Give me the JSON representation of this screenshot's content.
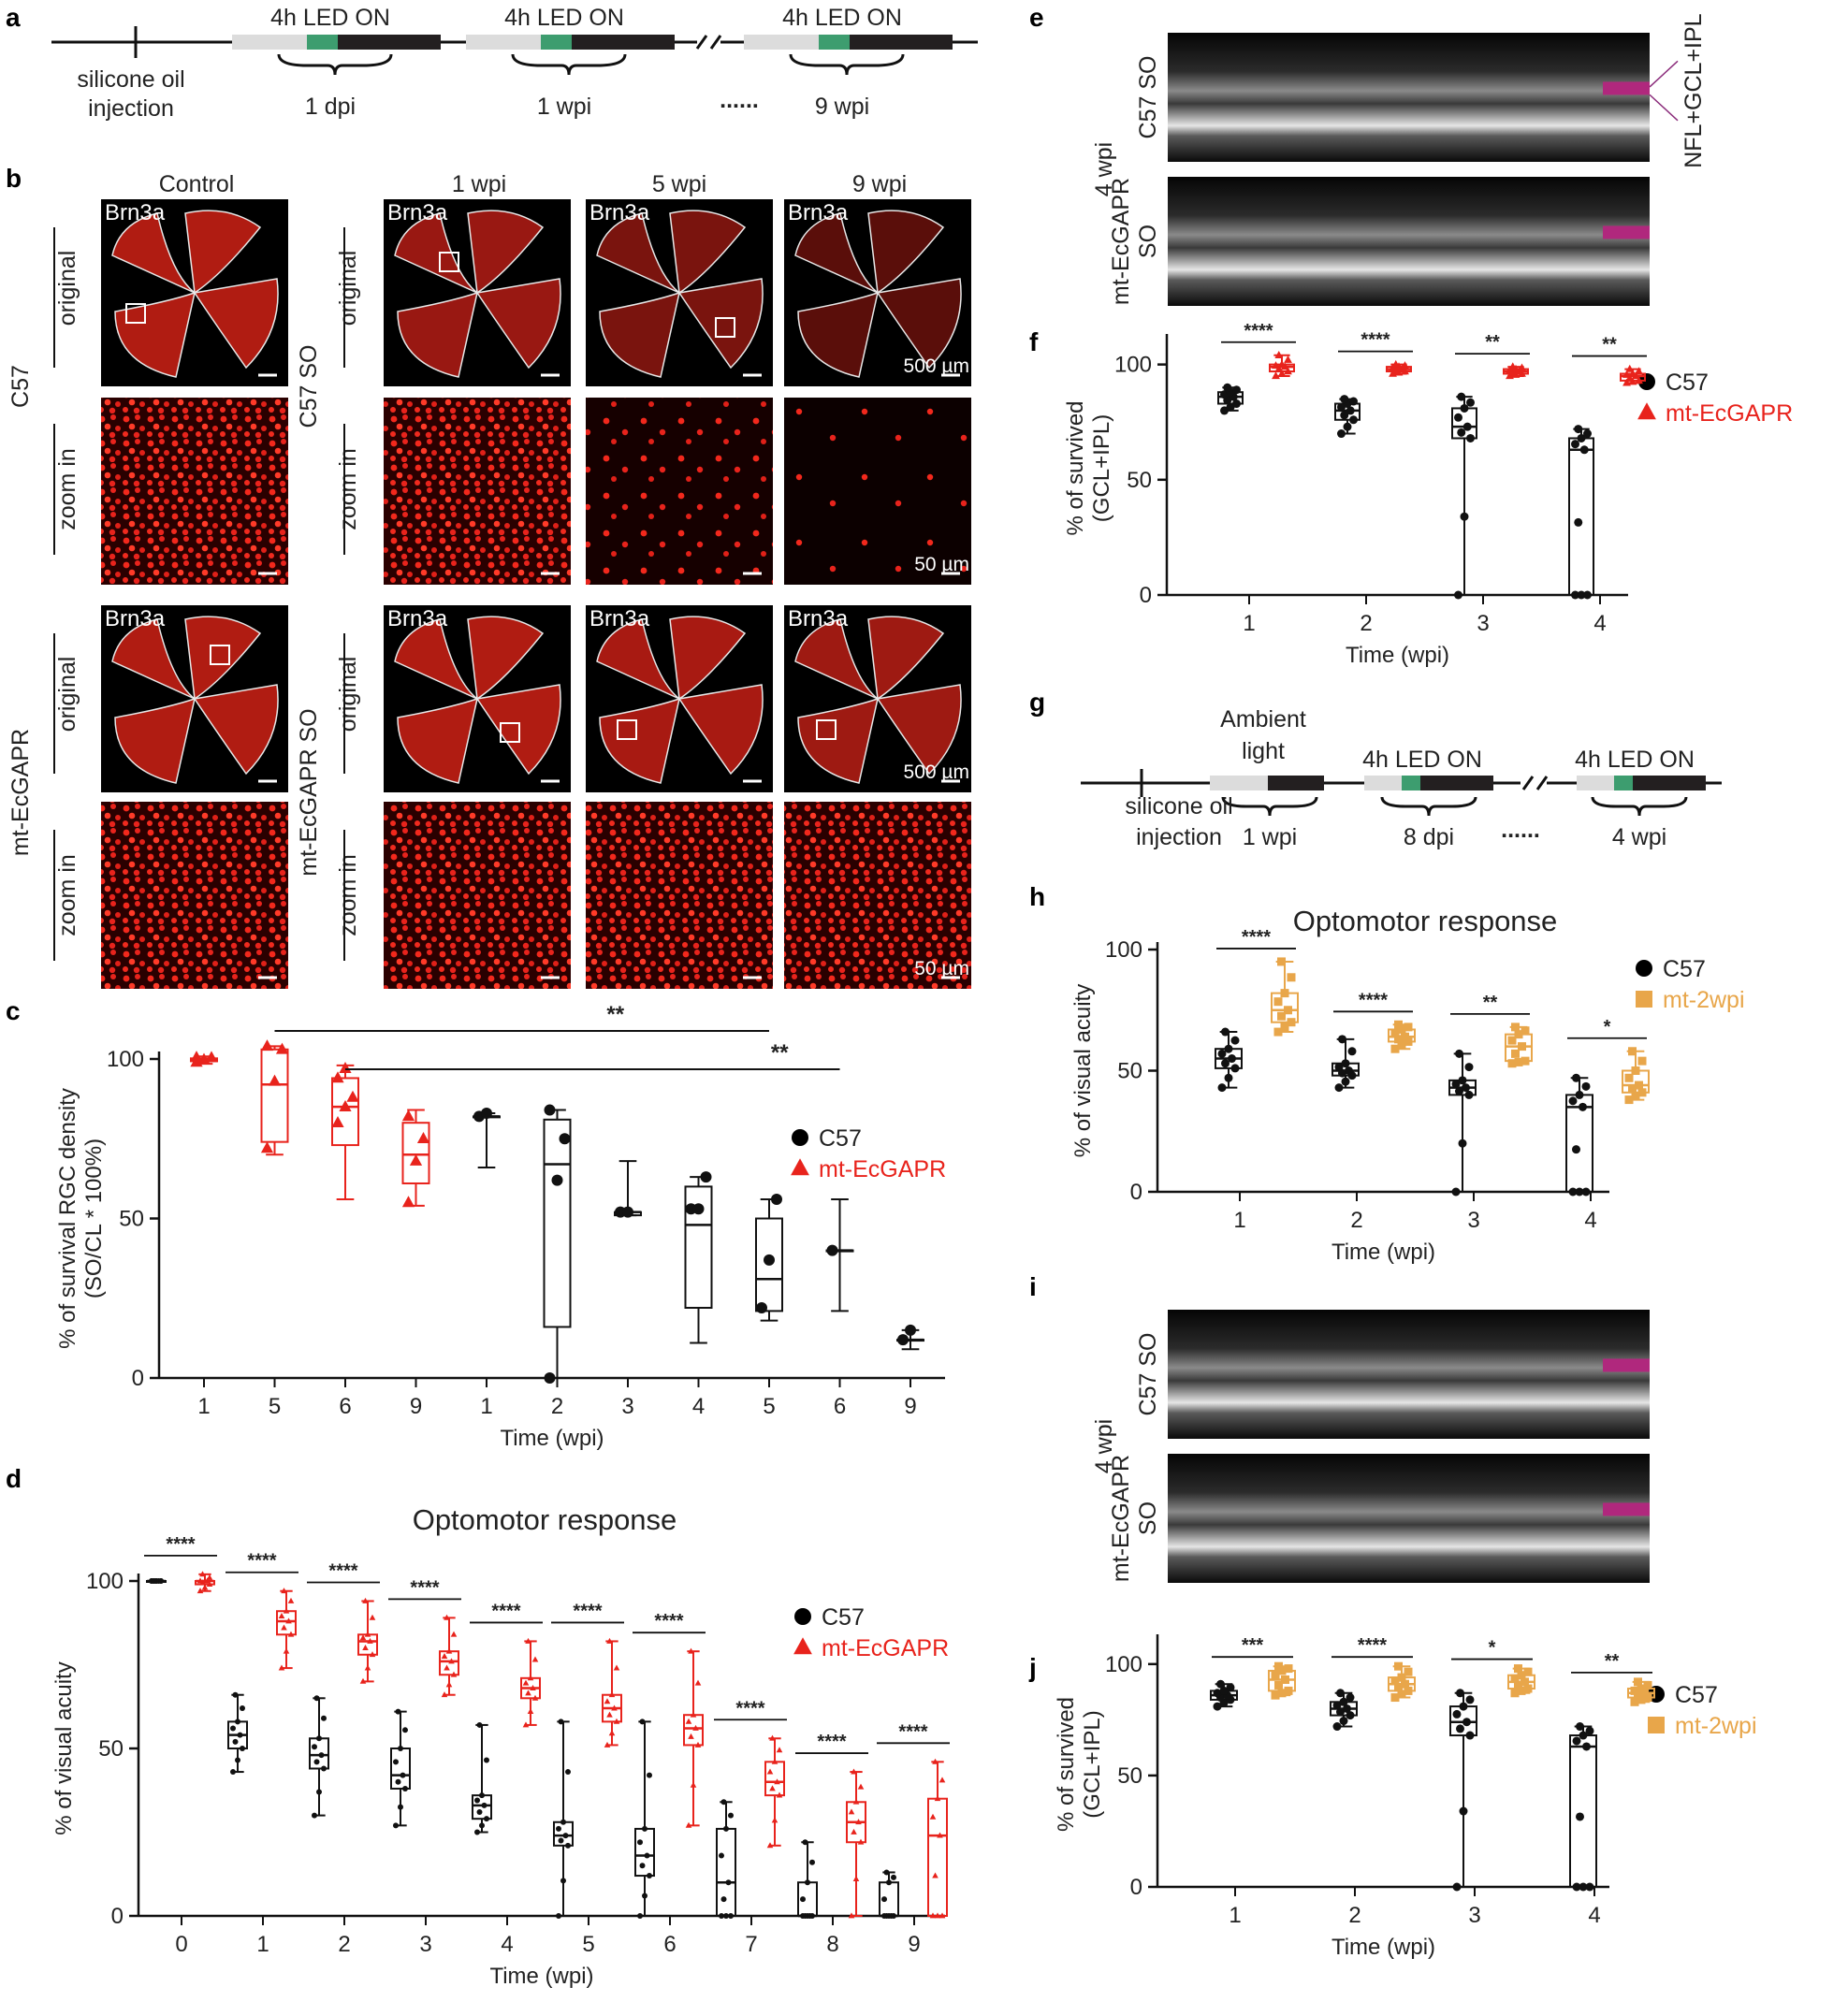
{
  "panels": {
    "a": {
      "letter": "a",
      "injection": "silicone oil\ninjection",
      "led": "4h LED ON",
      "times": [
        "1 dpi",
        "1 wpi",
        "9 wpi"
      ],
      "dots": "......"
    },
    "b": {
      "letter": "b",
      "columns": [
        "Control",
        "1 wpi",
        "5 wpi",
        "9 wpi"
      ],
      "marker": "Brn3a",
      "rows": [
        "C57",
        "mt-EcGAPR"
      ],
      "groups": [
        "C57 SO",
        "mt-EcGAPR SO"
      ],
      "sublabels": [
        "original",
        "zoom in"
      ],
      "scale_large": "500 µm",
      "scale_small": "50 µm"
    },
    "e": {
      "letter": "e",
      "side": "4 wpi",
      "rows": [
        "C57 SO",
        "mt-EcGAPR\nSO"
      ],
      "annot": "NFL+GCL+IPL"
    },
    "g": {
      "letter": "g",
      "injection": "silicone oil\ninjection",
      "ambient": "Ambient\nlight",
      "led": "4h LED ON",
      "times": [
        "1 wpi",
        "8 dpi",
        "4 wpi"
      ],
      "dots": "......"
    },
    "i": {
      "letter": "i",
      "side": "4 wpi",
      "rows": [
        "C57 SO",
        "mt-EcGAPR\nSO"
      ]
    }
  },
  "chart_data": [
    {
      "id": "c",
      "letter": "c",
      "type": "box",
      "ylabel": "% of survival RGC density\n(SO/CL * 100%)",
      "xlabel": "Time (wpi)",
      "ylim": [
        0,
        100
      ],
      "yticks": [
        0,
        50,
        100
      ],
      "categories": [
        "1",
        "5",
        "6",
        "9",
        "1",
        "2",
        "3",
        "4",
        "5",
        "6",
        "9"
      ],
      "legend": [
        {
          "name": "C57",
          "color": "#000000",
          "marker": "circle"
        },
        {
          "name": "mt-EcGAPR",
          "color": "#e8231c",
          "marker": "triangle"
        }
      ],
      "boxes": [
        {
          "series": 1,
          "min": 98.5,
          "q1": 99.3,
          "median": 99.8,
          "q3": 100.2,
          "max": 100.8,
          "points": [
            99.0,
            99.8,
            100.4,
            100.5
          ]
        },
        {
          "series": 1,
          "min": 70,
          "q1": 74,
          "median": 92,
          "q3": 103,
          "max": 104,
          "points": [
            72,
            93,
            103,
            104
          ]
        },
        {
          "series": 1,
          "min": 56,
          "q1": 73,
          "median": 85,
          "q3": 94,
          "max": 98,
          "points": [
            80,
            85,
            88,
            94,
            97
          ]
        },
        {
          "series": 1,
          "min": 54,
          "q1": 61,
          "median": 70,
          "q3": 80,
          "max": 84,
          "points": [
            55,
            68,
            75,
            82
          ]
        },
        {
          "series": 0,
          "min": 66,
          "q1": 82,
          "median": 82,
          "q3": 82,
          "max": 83,
          "points": [
            82,
            83
          ]
        },
        {
          "series": 0,
          "min": 0,
          "q1": 16,
          "median": 67,
          "q3": 81,
          "max": 84,
          "points": [
            0,
            62,
            75,
            84
          ]
        },
        {
          "series": 0,
          "min": 51,
          "q1": 51,
          "median": 52,
          "q3": 52,
          "max": 68,
          "points": [
            52,
            52
          ]
        },
        {
          "series": 0,
          "min": 11,
          "q1": 22,
          "median": 48,
          "q3": 60,
          "max": 63,
          "points": [
            53,
            53,
            63
          ]
        },
        {
          "series": 0,
          "min": 18,
          "q1": 21,
          "median": 31,
          "q3": 50,
          "max": 56,
          "points": [
            22,
            37,
            56
          ]
        },
        {
          "series": 0,
          "min": 21,
          "q1": 40,
          "median": 40,
          "q3": 40,
          "max": 56,
          "points": [
            40
          ]
        },
        {
          "series": 0,
          "min": 9,
          "q1": 12,
          "median": 12,
          "q3": 12,
          "max": 15,
          "points": [
            12,
            15
          ]
        }
      ],
      "brackets": [
        {
          "from": 1,
          "to": 8,
          "label": "**"
        },
        {
          "from": 2,
          "to": 9,
          "label": "**"
        }
      ]
    },
    {
      "id": "d",
      "letter": "d",
      "type": "box",
      "title": "Optomotor response",
      "ylabel": "% of visual acuity",
      "xlabel": "Time (wpi)",
      "ylim": [
        0,
        100
      ],
      "yticks": [
        0,
        50,
        100
      ],
      "categories": [
        "0",
        "1",
        "2",
        "3",
        "4",
        "5",
        "6",
        "7",
        "8",
        "9"
      ],
      "legend": [
        {
          "name": "C57",
          "color": "#000000",
          "marker": "circle"
        },
        {
          "name": "mt-EcGAPR",
          "color": "#e8231c",
          "marker": "triangle"
        }
      ],
      "pairs": [
        {
          "label": "****",
          "c57": [
            100,
            100,
            100,
            100,
            100
          ],
          "mt": [
            97,
            99,
            100,
            100,
            102
          ]
        },
        {
          "label": "****",
          "c57": [
            43,
            50,
            54,
            58,
            66
          ],
          "mt": [
            74,
            84,
            88,
            91,
            97
          ]
        },
        {
          "label": "****",
          "c57": [
            30,
            44,
            48,
            53,
            65
          ],
          "mt": [
            70,
            78,
            82,
            84,
            94
          ]
        },
        {
          "label": "****",
          "c57": [
            27,
            38,
            42,
            50,
            61
          ],
          "mt": [
            66,
            72,
            76,
            79,
            89
          ]
        },
        {
          "label": "****",
          "c57": [
            25,
            29,
            33,
            36,
            57
          ],
          "mt": [
            57,
            65,
            68,
            71,
            82
          ]
        },
        {
          "label": "****",
          "c57": [
            0,
            21,
            24,
            28,
            58
          ],
          "mt": [
            51,
            58,
            62,
            66,
            82
          ]
        },
        {
          "label": "****",
          "c57": [
            0,
            12,
            18,
            26,
            58
          ],
          "mt": [
            27,
            51,
            56,
            60,
            79
          ]
        },
        {
          "label": "****",
          "c57": [
            0,
            0,
            10,
            26,
            34
          ],
          "mt": [
            21,
            36,
            40,
            46,
            53
          ]
        },
        {
          "label": "****",
          "c57": [
            0,
            0,
            0,
            10,
            22
          ],
          "mt": [
            0,
            22,
            28,
            34,
            43
          ]
        },
        {
          "label": "****",
          "c57": [
            0,
            0,
            0,
            10,
            13
          ],
          "mt": [
            0,
            0,
            24,
            35,
            46
          ]
        }
      ]
    },
    {
      "id": "f",
      "letter": "f",
      "type": "box",
      "ylabel": "% of survived\n(GCL+IPL)",
      "xlabel": "Time (wpi)",
      "ylim": [
        0,
        110
      ],
      "yticks": [
        0,
        50,
        100
      ],
      "categories": [
        "1",
        "2",
        "3",
        "4"
      ],
      "legend": [
        {
          "name": "C57",
          "color": "#000000",
          "marker": "circle"
        },
        {
          "name": "mt-EcGAPR",
          "color": "#e8231c",
          "marker": "triangle"
        }
      ],
      "pairs": [
        {
          "label": "****",
          "c57": [
            80,
            83,
            86,
            88,
            90
          ],
          "mt": [
            95,
            97,
            99,
            100,
            104
          ]
        },
        {
          "label": "****",
          "c57": [
            70,
            76,
            80,
            83,
            85
          ],
          "mt": [
            96,
            97,
            98,
            99,
            100
          ]
        },
        {
          "label": "**",
          "c57": [
            0,
            68,
            73,
            81,
            86
          ],
          "mt": [
            95,
            96,
            97,
            98,
            99
          ]
        },
        {
          "label": "**",
          "c57": [
            0,
            0,
            63,
            68,
            72
          ],
          "mt": [
            92,
            93,
            95,
            96,
            98
          ]
        }
      ]
    },
    {
      "id": "h",
      "letter": "h",
      "type": "box",
      "title": "Optomotor response",
      "ylabel": "% of visual acuity",
      "xlabel": "Time (wpi)",
      "ylim": [
        0,
        100
      ],
      "yticks": [
        0,
        50,
        100
      ],
      "categories": [
        "1",
        "2",
        "3",
        "4"
      ],
      "legend": [
        {
          "name": "C57",
          "color": "#000000",
          "marker": "circle"
        },
        {
          "name": "mt-2wpi",
          "color": "#e8a64a",
          "marker": "square"
        }
      ],
      "pairs": [
        {
          "label": "****",
          "c57": [
            43,
            51,
            55,
            59,
            66
          ],
          "mt": [
            66,
            70,
            75,
            82,
            95
          ]
        },
        {
          "label": "****",
          "c57": [
            43,
            48,
            50,
            53,
            63
          ],
          "mt": [
            59,
            62,
            64,
            67,
            69
          ]
        },
        {
          "label": "**",
          "c57": [
            0,
            40,
            43,
            46,
            57
          ],
          "mt": [
            53,
            54,
            60,
            65,
            68
          ]
        },
        {
          "label": "*",
          "c57": [
            0,
            0,
            35,
            40,
            47
          ],
          "mt": [
            38,
            41,
            44,
            50,
            58
          ]
        }
      ]
    },
    {
      "id": "j",
      "letter": "j",
      "type": "box",
      "ylabel": "% of survived\n(GCL+IPL)",
      "xlabel": "Time (wpi)",
      "ylim": [
        0,
        110
      ],
      "yticks": [
        0,
        50,
        100
      ],
      "categories": [
        "1",
        "2",
        "3",
        "4"
      ],
      "legend": [
        {
          "name": "C57",
          "color": "#000000",
          "marker": "circle"
        },
        {
          "name": "mt-2wpi",
          "color": "#e8a64a",
          "marker": "square"
        }
      ],
      "pairs": [
        {
          "label": "***",
          "c57": [
            81,
            84,
            86,
            88,
            91
          ],
          "mt": [
            86,
            88,
            93,
            97,
            99
          ]
        },
        {
          "label": "****",
          "c57": [
            72,
            77,
            80,
            83,
            87
          ],
          "mt": [
            85,
            88,
            91,
            94,
            99
          ]
        },
        {
          "label": "*",
          "c57": [
            0,
            68,
            74,
            81,
            87
          ],
          "mt": [
            87,
            89,
            92,
            95,
            98
          ]
        },
        {
          "label": "**",
          "c57": [
            0,
            0,
            63,
            68,
            72
          ],
          "mt": [
            83,
            85,
            87,
            89,
            92
          ]
        }
      ]
    }
  ]
}
